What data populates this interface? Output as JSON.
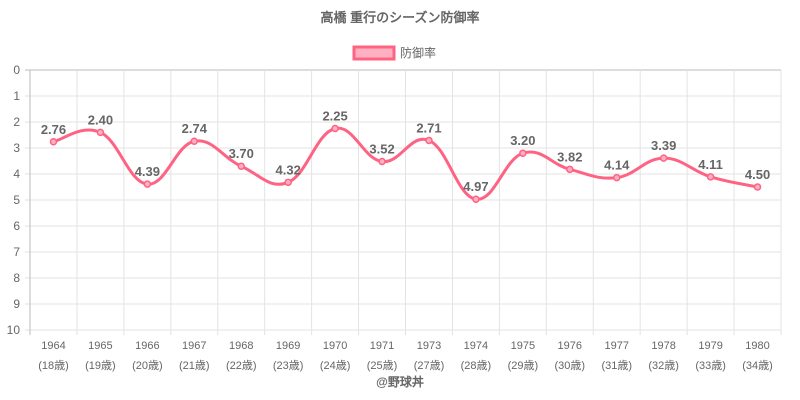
{
  "chart_data": {
    "type": "line",
    "title": "高橋 重行のシーズン防御率",
    "legend": {
      "label": "防御率",
      "placement": "top-center"
    },
    "categories": [
      "1964",
      "1965",
      "1966",
      "1967",
      "1968",
      "1969",
      "1970",
      "1971",
      "1973",
      "1974",
      "1975",
      "1976",
      "1977",
      "1978",
      "1979",
      "1980"
    ],
    "ages": [
      "(18歳)",
      "(19歳)",
      "(20歳)",
      "(21歳)",
      "(22歳)",
      "(23歳)",
      "(24歳)",
      "(25歳)",
      "(27歳)",
      "(28歳)",
      "(29歳)",
      "(30歳)",
      "(31歳)",
      "(32歳)",
      "(33歳)",
      "(34歳)"
    ],
    "series": [
      {
        "name": "防御率",
        "values": [
          2.76,
          2.4,
          4.39,
          2.74,
          3.7,
          4.32,
          2.25,
          3.52,
          2.71,
          4.97,
          3.2,
          3.82,
          4.14,
          3.39,
          4.11,
          4.5
        ]
      }
    ],
    "ylim": [
      0,
      10
    ],
    "y_reversed": true,
    "yticks": [
      0,
      1,
      2,
      3,
      4,
      5,
      6,
      7,
      8,
      9,
      10
    ],
    "grid": true,
    "xlabel": "",
    "ylabel": "",
    "colors": {
      "line": "#ff6384",
      "fill": "#ffb1c1"
    }
  },
  "credit": "@野球丼"
}
